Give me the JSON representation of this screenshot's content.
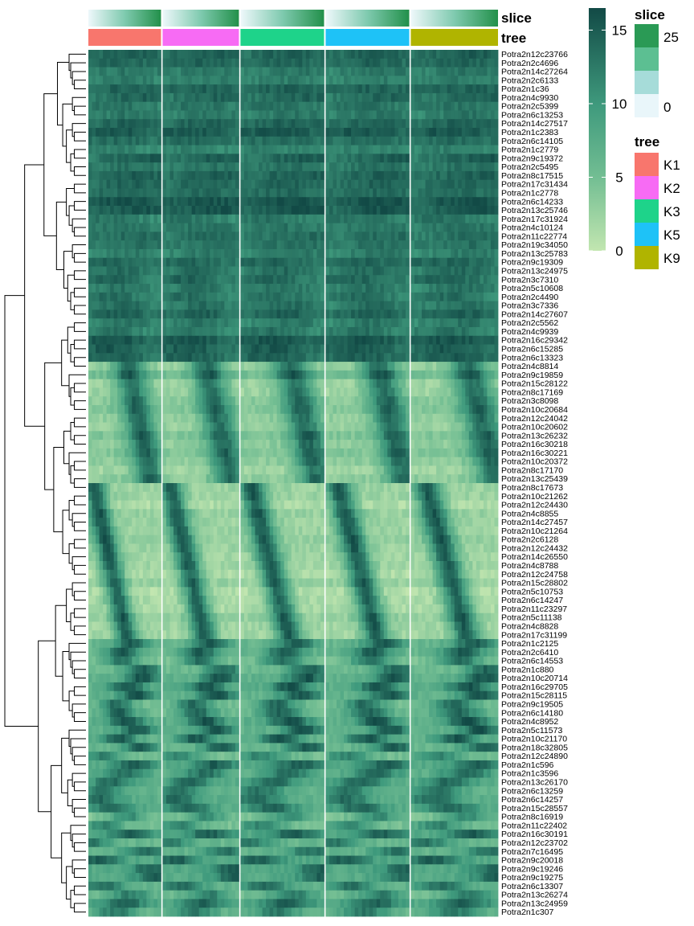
{
  "chart_data": {
    "type": "heatmap",
    "row_labels": [
      "Potra2n12c23766",
      "Potra2n2c4696",
      "Potra2n14c27264",
      "Potra2n2c6133",
      "Potra2n1c36",
      "Potra2n4c9930",
      "Potra2n2c5399",
      "Potra2n6c13253",
      "Potra2n14c27517",
      "Potra2n1c2383",
      "Potra2n6c14105",
      "Potra2n1c2779",
      "Potra2n9c19372",
      "Potra2n2c5495",
      "Potra2n8c17515",
      "Potra2n17c31434",
      "Potra2n1c2778",
      "Potra2n6c14233",
      "Potra2n13c25746",
      "Potra2n17c31924",
      "Potra2n4c10124",
      "Potra2n11c22774",
      "Potra2n19c34050",
      "Potra2n13c25783",
      "Potra2n9c19309",
      "Potra2n13c24975",
      "Potra2n3c7310",
      "Potra2n5c10608",
      "Potra2n2c4490",
      "Potra2n3c7336",
      "Potra2n14c27607",
      "Potra2n2c5562",
      "Potra2n4c9939",
      "Potra2n16c29342",
      "Potra2n6c15285",
      "Potra2n6c13323",
      "Potra2n4c8814",
      "Potra2n9c19859",
      "Potra2n15c28122",
      "Potra2n8c17169",
      "Potra2n3c8098",
      "Potra2n10c20684",
      "Potra2n12c24042",
      "Potra2n10c20602",
      "Potra2n13c26232",
      "Potra2n16c30218",
      "Potra2n16c30221",
      "Potra2n10c20372",
      "Potra2n8c17170",
      "Potra2n13c25439",
      "Potra2n8c17673",
      "Potra2n10c21262",
      "Potra2n12c24430",
      "Potra2n4c8855",
      "Potra2n14c27457",
      "Potra2n10c21264",
      "Potra2n2c6128",
      "Potra2n12c24432",
      "Potra2n14c26550",
      "Potra2n4c8788",
      "Potra2n12c24758",
      "Potra2n15c28802",
      "Potra2n5c10753",
      "Potra2n6c14247",
      "Potra2n11c23297",
      "Potra2n5c11138",
      "Potra2n4c8828",
      "Potra2n17c31199",
      "Potra2n1c2125",
      "Potra2n2c6410",
      "Potra2n6c14553",
      "Potra2n1c880",
      "Potra2n10c20714",
      "Potra2n16c29705",
      "Potra2n15c28115",
      "Potra2n9c19505",
      "Potra2n6c14180",
      "Potra2n4c8952",
      "Potra2n5c11573",
      "Potra2n10c21170",
      "Potra2n18c32805",
      "Potra2n12c24890",
      "Potra2n1c596",
      "Potra2n1c3596",
      "Potra2n13c26170",
      "Potra2n6c13259",
      "Potra2n6c14257",
      "Potra2n15c28557",
      "Potra2n8c16919",
      "Potra2n11c22402",
      "Potra2n16c30191",
      "Potra2n12c23702",
      "Potra2n7c16495",
      "Potra2n9c20018",
      "Potra2n9c19246",
      "Potra2n9c19275",
      "Potra2n6c13307",
      "Potra2n13c26274",
      "Potra2n13c24959",
      "Potra2n1c307"
    ],
    "column_groups": [
      {
        "name": "K1",
        "n_columns": 20
      },
      {
        "name": "K2",
        "n_columns": 21
      },
      {
        "name": "K3",
        "n_columns": 23
      },
      {
        "name": "K5",
        "n_columns": 23
      },
      {
        "name": "K9",
        "n_columns": 24
      }
    ],
    "value_range": [
      0,
      16.5
    ],
    "slice_range": [
      0,
      27
    ],
    "annotation_tracks": [
      "slice",
      "tree"
    ],
    "row_dendrogram": true
  },
  "legend": {
    "value_ticks": [
      "15",
      "10",
      "5",
      "0"
    ],
    "value_tick_values": [
      15,
      10,
      5,
      0
    ],
    "slice": {
      "title": "slice",
      "labels": [
        "25",
        "0"
      ],
      "swatches": [
        "#2a9a55",
        "#5cbf92",
        "#a6dcd9",
        "#e9f6fa"
      ]
    },
    "tree": {
      "title": "tree",
      "entries": [
        {
          "label": "K1",
          "color": "#f8766d"
        },
        {
          "label": "K2",
          "color": "#f76bf4"
        },
        {
          "label": "K3",
          "color": "#1ed38a"
        },
        {
          "label": "K5",
          "color": "#1ec2f7"
        },
        {
          "label": "K9",
          "color": "#b0b400"
        }
      ]
    }
  },
  "colors": {
    "low": "#c2e6b0",
    "mid": "#4ea886",
    "high": "#124a46",
    "slice_low": "#eef8fb",
    "slice_high": "#22904a"
  }
}
